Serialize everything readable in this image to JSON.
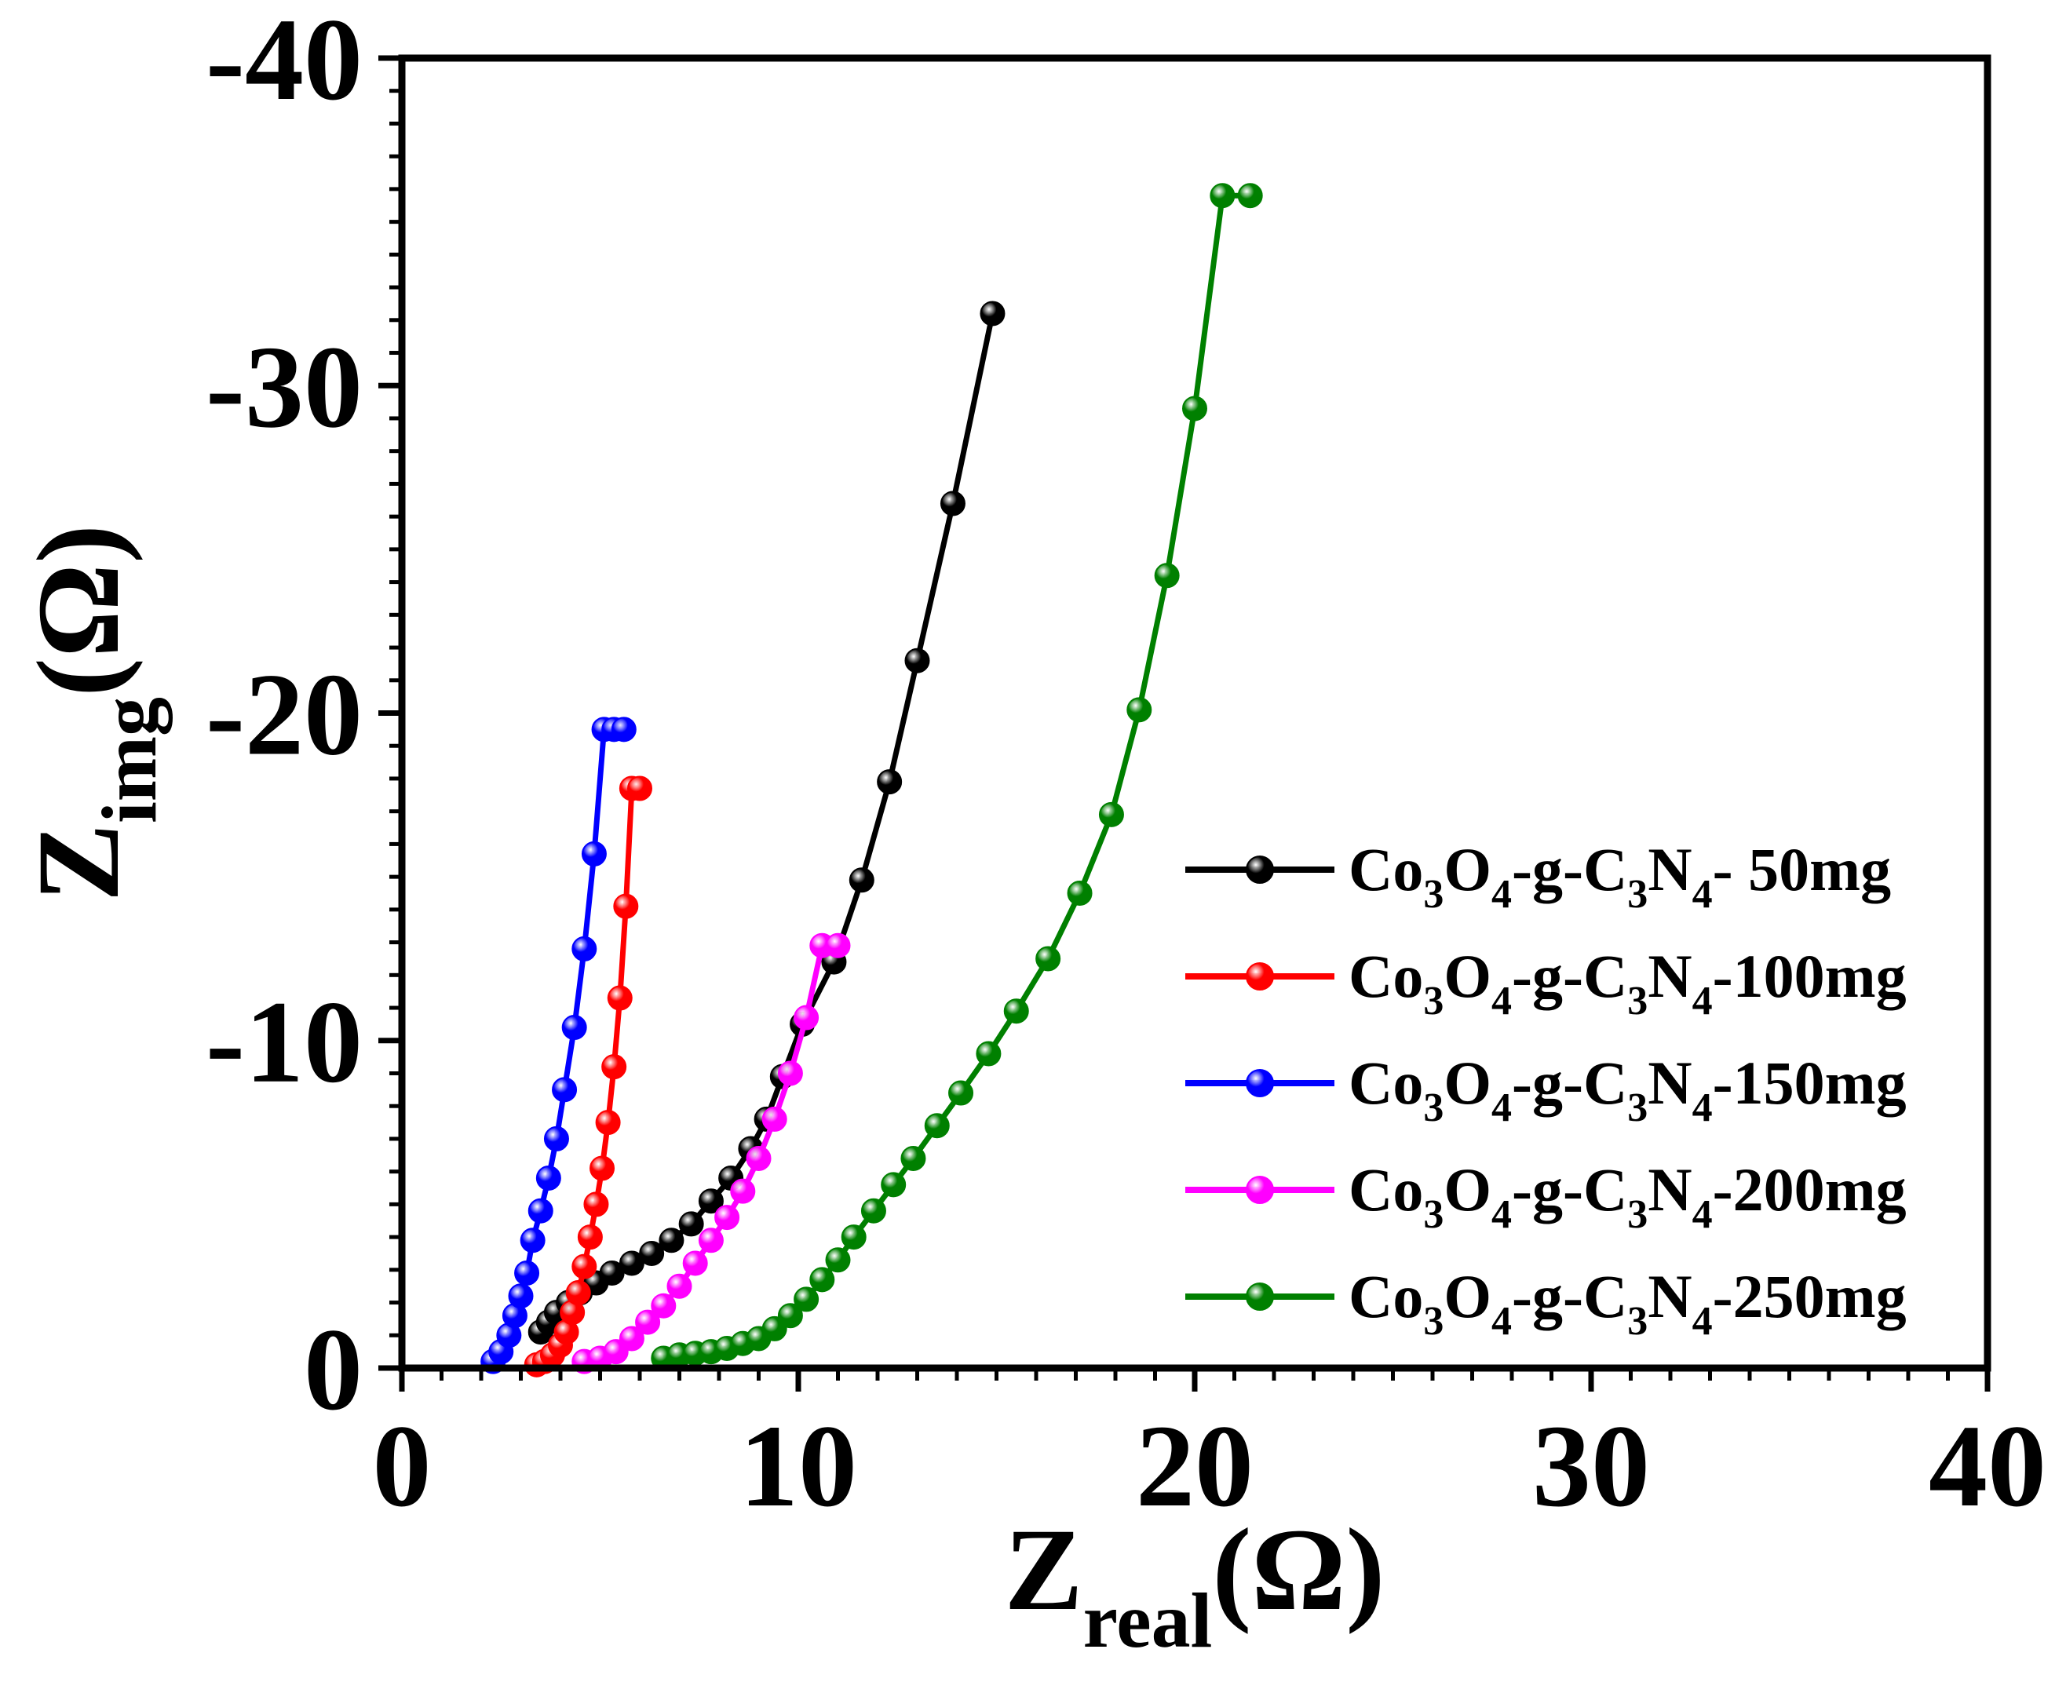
{
  "chart_data": {
    "type": "scatter",
    "title": "",
    "xlabel": {
      "main": "Z",
      "sub": "real",
      "unit": "(Ω)"
    },
    "ylabel": {
      "main": "Z",
      "sub": "img",
      "unit": "(Ω)"
    },
    "xlim": [
      0,
      40
    ],
    "ylim": [
      0,
      -40
    ],
    "x_ticks": [
      0,
      10,
      20,
      30,
      40
    ],
    "x_tick_labels": [
      "0",
      "10",
      "20",
      "30",
      "40"
    ],
    "y_ticks": [
      0,
      -10,
      -20,
      -30,
      -40
    ],
    "y_tick_labels": [
      "0",
      "-10",
      "-20",
      "-30",
      "-40"
    ],
    "grid": false,
    "legend_position": "lower-right",
    "series": [
      {
        "name": "Co3O4-g-C3N4- 50mg",
        "label_parts": [
          "Co",
          "3",
          "O",
          "4",
          "-g-C",
          "3",
          "N",
          "4",
          "- 50mg"
        ],
        "color": "#000000",
        "x": [
          3.5,
          3.7,
          3.9,
          4.2,
          4.5,
          4.9,
          5.3,
          5.8,
          6.3,
          6.8,
          7.3,
          7.8,
          8.3,
          8.8,
          9.2,
          9.6,
          10.1,
          10.9,
          11.6,
          12.3,
          13.0,
          13.9,
          14.9
        ],
        "y": [
          -1.1,
          -1.4,
          -1.7,
          -2.0,
          -2.3,
          -2.6,
          -2.9,
          -3.2,
          -3.5,
          -3.9,
          -4.4,
          -5.1,
          -5.8,
          -6.7,
          -7.6,
          -8.9,
          -10.5,
          -12.4,
          -14.9,
          -17.9,
          -21.6,
          -26.4,
          -32.2
        ]
      },
      {
        "name": "Co3O4-g-C3N4-100mg",
        "label_parts": [
          "Co",
          "3",
          "O",
          "4",
          "-g-C",
          "3",
          "N",
          "4",
          "-100mg"
        ],
        "color": "#ff0000",
        "x": [
          3.4,
          3.6,
          3.8,
          4.0,
          4.15,
          4.3,
          4.45,
          4.6,
          4.75,
          4.9,
          5.05,
          5.2,
          5.35,
          5.5,
          5.65,
          5.8,
          6.0
        ],
        "y": [
          -0.1,
          -0.2,
          -0.4,
          -0.7,
          -1.1,
          -1.7,
          -2.3,
          -3.1,
          -4.0,
          -5.0,
          -6.1,
          -7.5,
          -9.2,
          -11.3,
          -14.1,
          -17.7,
          -17.7
        ]
      },
      {
        "name": "Co3O4-g-C3N4-150mg",
        "label_parts": [
          "Co",
          "3",
          "O",
          "4",
          "-g-C",
          "3",
          "N",
          "4",
          "-150mg"
        ],
        "color": "#0000ff",
        "x": [
          2.3,
          2.5,
          2.7,
          2.85,
          3.0,
          3.15,
          3.3,
          3.5,
          3.7,
          3.9,
          4.1,
          4.35,
          4.6,
          4.85,
          5.1,
          5.35,
          5.6
        ],
        "y": [
          -0.2,
          -0.5,
          -1.0,
          -1.6,
          -2.2,
          -2.9,
          -3.9,
          -4.8,
          -5.8,
          -7.0,
          -8.5,
          -10.4,
          -12.8,
          -15.7,
          -19.5,
          -19.5,
          -19.5
        ]
      },
      {
        "name": "Co3O4-g-C3N4-200mg",
        "label_parts": [
          "Co",
          "3",
          "O",
          "4",
          "-g-C",
          "3",
          "N",
          "4",
          "-200mg"
        ],
        "color": "#ff00ff",
        "x": [
          4.6,
          5.0,
          5.4,
          5.8,
          6.2,
          6.6,
          7.0,
          7.4,
          7.8,
          8.2,
          8.6,
          9.0,
          9.4,
          9.8,
          10.2,
          10.6,
          11.0
        ],
        "y": [
          -0.2,
          -0.3,
          -0.5,
          -0.9,
          -1.4,
          -1.9,
          -2.5,
          -3.2,
          -3.9,
          -4.6,
          -5.4,
          -6.4,
          -7.6,
          -9.0,
          -10.7,
          -12.9,
          -12.9
        ]
      },
      {
        "name": "Co3O4-g-C3N4-250mg",
        "label_parts": [
          "Co",
          "3",
          "O",
          "4",
          "-g-C",
          "3",
          "N",
          "4",
          "-250mg"
        ],
        "color": "#008000",
        "x": [
          6.6,
          7.0,
          7.4,
          7.8,
          8.2,
          8.6,
          9.0,
          9.4,
          9.8,
          10.2,
          10.6,
          11.0,
          11.4,
          11.9,
          12.4,
          12.9,
          13.5,
          14.1,
          14.8,
          15.5,
          16.3,
          17.1,
          17.9,
          18.6,
          19.3,
          20.0,
          20.7,
          21.4
        ],
        "y": [
          -0.3,
          -0.4,
          -0.45,
          -0.5,
          -0.6,
          -0.75,
          -0.9,
          -1.2,
          -1.6,
          -2.1,
          -2.7,
          -3.3,
          -4.0,
          -4.8,
          -5.6,
          -6.4,
          -7.4,
          -8.4,
          -9.6,
          -10.9,
          -12.5,
          -14.5,
          -16.9,
          -20.1,
          -24.2,
          -29.3,
          -35.8,
          -35.8
        ]
      }
    ]
  }
}
